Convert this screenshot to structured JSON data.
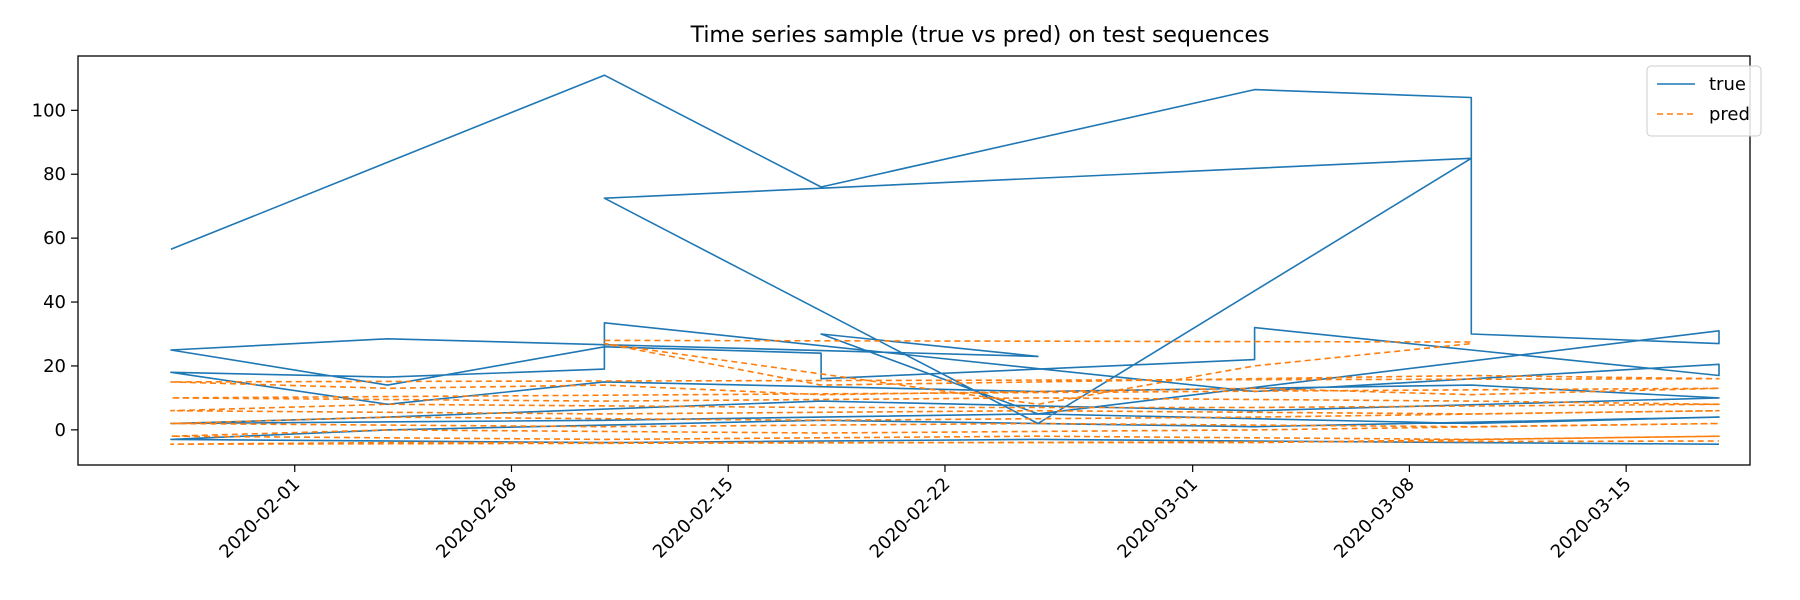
{
  "chart_data": {
    "type": "line",
    "title": "Time series sample (true vs pred) on test sequences",
    "xlabel": "",
    "ylabel": "",
    "x_type": "date",
    "xlim": [
      "2020-01-25",
      "2020-03-19"
    ],
    "ylim": [
      -11,
      117
    ],
    "x_ticks": [
      "2020-02-01",
      "2020-02-08",
      "2020-02-15",
      "2020-02-22",
      "2020-03-01",
      "2020-03-08",
      "2020-03-15"
    ],
    "y_ticks": [
      0,
      20,
      40,
      60,
      80,
      100
    ],
    "grid": false,
    "legend_position": "top-right",
    "series": [
      {
        "name": "true",
        "color": "#1f77b4",
        "style": "solid",
        "points": [
          [
            "2020-01-28",
            56.5
          ],
          [
            "2020-02-11",
            111
          ],
          [
            "2020-02-18",
            76
          ],
          [
            "2020-03-03",
            106.5
          ],
          [
            "2020-03-10",
            104
          ],
          [
            "2020-03-10",
            85
          ],
          [
            "2020-02-11",
            72.5
          ],
          [
            "2020-02-25",
            2
          ],
          [
            "2020-03-10",
            85
          ],
          [
            "2020-03-10",
            30
          ],
          [
            "2020-03-18",
            27
          ],
          [
            "2020-03-18",
            31
          ],
          [
            "2020-02-25",
            5
          ],
          [
            "2020-02-18",
            30
          ],
          [
            "2020-02-25",
            23
          ],
          [
            "2020-02-04",
            28.5
          ],
          [
            "2020-01-28",
            25
          ],
          [
            "2020-02-04",
            14
          ],
          [
            "2020-02-11",
            26
          ],
          [
            "2020-02-18",
            24
          ],
          [
            "2020-02-18",
            16
          ],
          [
            "2020-03-03",
            22
          ],
          [
            "2020-03-03",
            32
          ],
          [
            "2020-03-10",
            25
          ],
          [
            "2020-03-18",
            17
          ],
          [
            "2020-03-18",
            20.5
          ],
          [
            "2020-03-03",
            12
          ],
          [
            "2020-02-11",
            33.5
          ],
          [
            "2020-02-11",
            19
          ],
          [
            "2020-02-04",
            16.5
          ],
          [
            "2020-01-28",
            18
          ],
          [
            "2020-02-04",
            8
          ],
          [
            "2020-02-11",
            15
          ],
          [
            "2020-02-25",
            12
          ],
          [
            "2020-03-10",
            14
          ],
          [
            "2020-03-18",
            10
          ],
          [
            "2020-03-03",
            6
          ],
          [
            "2020-02-18",
            9
          ],
          [
            "2020-02-04",
            4
          ],
          [
            "2020-01-28",
            2
          ],
          [
            "2020-02-11",
            3
          ],
          [
            "2020-02-25",
            5
          ],
          [
            "2020-03-10",
            2
          ],
          [
            "2020-03-18",
            4
          ],
          [
            "2020-03-03",
            1
          ],
          [
            "2020-02-18",
            3
          ],
          [
            "2020-02-04",
            0
          ],
          [
            "2020-01-28",
            -3
          ],
          [
            "2020-02-11",
            -4
          ],
          [
            "2020-02-25",
            -3
          ],
          [
            "2020-03-10",
            -4
          ],
          [
            "2020-03-18",
            -4.5
          ]
        ]
      },
      {
        "name": "pred",
        "color": "#ff7f0e",
        "style": "dashed",
        "points": [
          [
            "2020-02-11",
            28
          ],
          [
            "2020-03-10",
            27.5
          ],
          [
            "2020-03-10",
            27
          ],
          [
            "2020-03-03",
            20
          ],
          [
            "2020-02-25",
            8
          ],
          [
            "2020-02-11",
            27
          ],
          [
            "2020-02-18",
            14
          ],
          [
            "2020-02-25",
            15
          ],
          [
            "2020-03-10",
            17
          ],
          [
            "2020-03-18",
            16
          ],
          [
            "2020-01-28",
            15
          ],
          [
            "2020-02-04",
            13
          ],
          [
            "2020-02-11",
            14
          ],
          [
            "2020-02-18",
            11
          ],
          [
            "2020-02-25",
            12
          ],
          [
            "2020-03-03",
            13
          ],
          [
            "2020-03-10",
            11
          ],
          [
            "2020-03-18",
            13
          ],
          [
            "2020-01-28",
            10
          ],
          [
            "2020-02-11",
            9
          ],
          [
            "2020-02-25",
            10
          ],
          [
            "2020-03-10",
            9
          ],
          [
            "2020-03-18",
            8
          ],
          [
            "2020-03-03",
            7
          ],
          [
            "2020-02-18",
            7
          ],
          [
            "2020-02-04",
            8
          ],
          [
            "2020-01-28",
            6
          ],
          [
            "2020-02-11",
            5
          ],
          [
            "2020-02-25",
            6
          ],
          [
            "2020-03-10",
            5
          ],
          [
            "2020-03-18",
            6
          ],
          [
            "2020-03-03",
            4
          ],
          [
            "2020-02-18",
            3
          ],
          [
            "2020-02-04",
            4
          ],
          [
            "2020-01-28",
            2
          ],
          [
            "2020-02-11",
            1
          ],
          [
            "2020-02-25",
            2
          ],
          [
            "2020-03-10",
            1
          ],
          [
            "2020-03-18",
            2
          ],
          [
            "2020-03-03",
            0
          ],
          [
            "2020-02-18",
            -1
          ],
          [
            "2020-02-04",
            0
          ],
          [
            "2020-01-28",
            -2
          ],
          [
            "2020-02-11",
            -3
          ],
          [
            "2020-02-25",
            -2
          ],
          [
            "2020-03-10",
            -3
          ],
          [
            "2020-03-18",
            -2
          ],
          [
            "2020-03-03",
            -4
          ],
          [
            "2020-02-18",
            -4
          ],
          [
            "2020-02-04",
            -4
          ],
          [
            "2020-01-28",
            -4.5
          ],
          [
            "2020-03-18",
            -3.5
          ]
        ]
      }
    ]
  }
}
